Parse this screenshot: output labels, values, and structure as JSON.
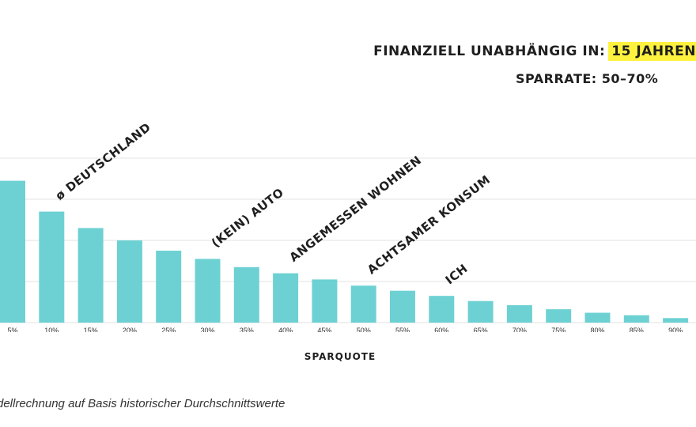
{
  "header": {
    "headline_prefix": "FINANZIELL UNABHÄNGIG IN:",
    "headline_highlight": "15 JAHREN",
    "subline": "SPARRATE: 50–70%"
  },
  "footnote": "dellrechnung auf Basis historischer Durchschnittswerte",
  "colors": {
    "bar": "#6dd1d3",
    "highlight": "#fff23f",
    "grid": "#e3e3e3",
    "text": "#1f1f1f"
  },
  "chart_data": {
    "type": "bar",
    "xlabel": "SPARQUOTE",
    "ylabel": "",
    "categories": [
      "5%",
      "10%",
      "15%",
      "20%",
      "25%",
      "30%",
      "35%",
      "40%",
      "45%",
      "50%",
      "55%",
      "60%",
      "65%",
      "70%",
      "75%",
      "80%",
      "85%",
      "90%"
    ],
    "values": [
      69,
      54,
      46,
      40,
      35,
      31,
      27,
      24,
      21,
      18,
      15.5,
      13,
      10.5,
      8.5,
      6.5,
      4.8,
      3.6,
      2.2
    ],
    "ylim": [
      0,
      80
    ],
    "grid": true,
    "annotations": [
      {
        "label": "ø DEUTSCHLAND",
        "category": "10%"
      },
      {
        "label": "(KEIN) AUTO",
        "category": "30%"
      },
      {
        "label": "ANGEMESSEN WOHNEN",
        "category": "40%"
      },
      {
        "label": "ACHTSAMER KONSUM",
        "category": "50%"
      },
      {
        "label": "ICH",
        "category": "60%"
      }
    ]
  }
}
